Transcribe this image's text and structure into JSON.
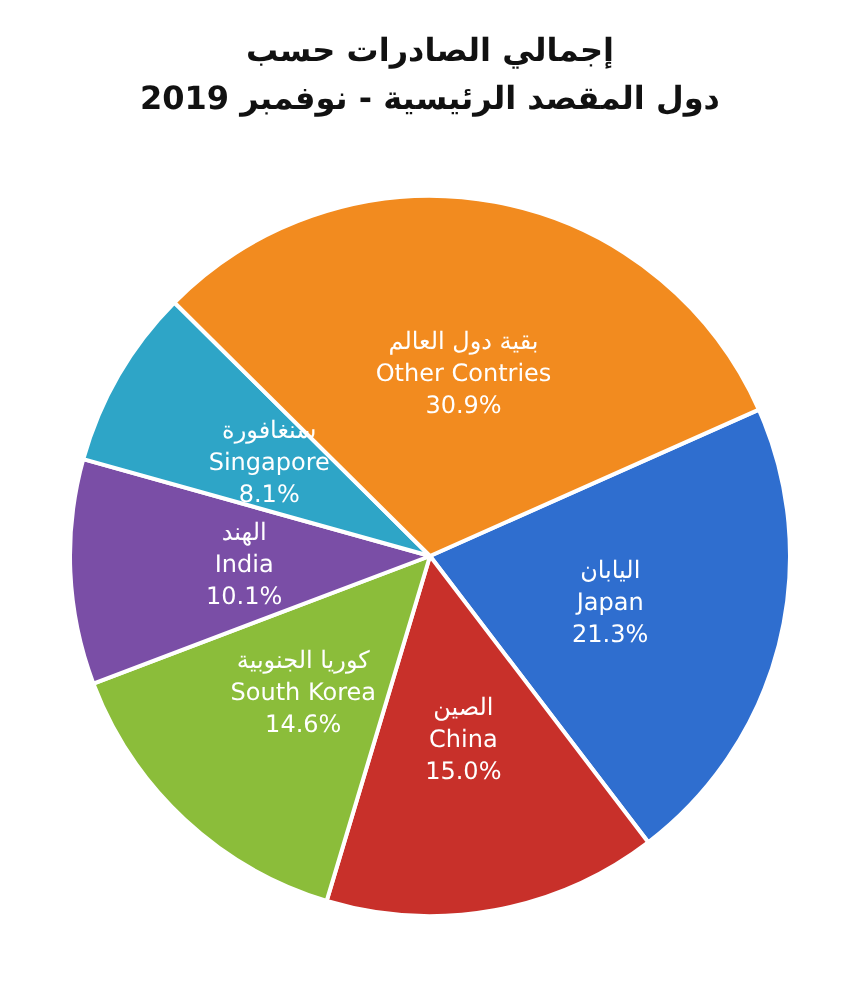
{
  "chart_data": {
    "type": "pie",
    "title": "إجمالي الصادرات حسب\nدول المقصد الرئيسية - نوفمبر 2019",
    "categories": [
      "اليابان\nJapan",
      "الصين\nChina",
      "كوريا الجنوبية\nSouth Korea",
      "الهند\nIndia",
      "سنغافورة\nSingapore",
      "بقية دول العالم\nOther Contries"
    ],
    "values": [
      21.3,
      15.0,
      14.6,
      10.1,
      8.1,
      30.9
    ],
    "value_labels": [
      "21.3%",
      "15.0%",
      "14.6%",
      "10.1%",
      "8.1%",
      "30.9%"
    ],
    "colors": [
      "#2f6ecf",
      "#c8302a",
      "#8bbd3a",
      "#7a4ea6",
      "#2ea5c7",
      "#f28b1f"
    ]
  }
}
